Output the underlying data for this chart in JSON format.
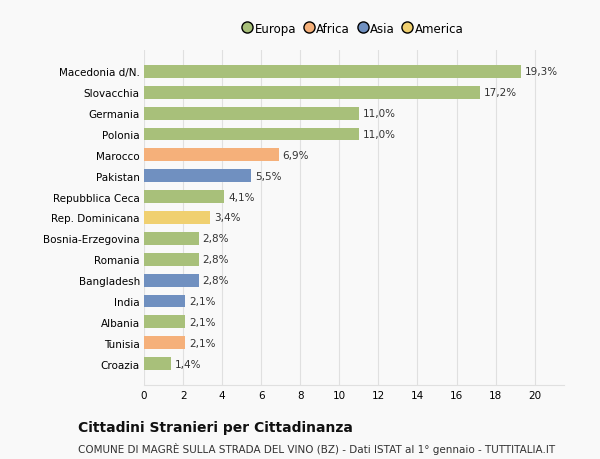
{
  "categories": [
    "Macedonia d/N.",
    "Slovacchia",
    "Germania",
    "Polonia",
    "Marocco",
    "Pakistan",
    "Repubblica Ceca",
    "Rep. Dominicana",
    "Bosnia-Erzegovina",
    "Romania",
    "Bangladesh",
    "India",
    "Albania",
    "Tunisia",
    "Croazia"
  ],
  "values": [
    19.3,
    17.2,
    11.0,
    11.0,
    6.9,
    5.5,
    4.1,
    3.4,
    2.8,
    2.8,
    2.8,
    2.1,
    2.1,
    2.1,
    1.4
  ],
  "labels": [
    "19,3%",
    "17,2%",
    "11,0%",
    "11,0%",
    "6,9%",
    "5,5%",
    "4,1%",
    "3,4%",
    "2,8%",
    "2,8%",
    "2,8%",
    "2,1%",
    "2,1%",
    "2,1%",
    "1,4%"
  ],
  "colors": [
    "#a8c07a",
    "#a8c07a",
    "#a8c07a",
    "#a8c07a",
    "#f5b07a",
    "#7090c0",
    "#a8c07a",
    "#f0d070",
    "#a8c07a",
    "#a8c07a",
    "#7090c0",
    "#7090c0",
    "#a8c07a",
    "#f5b07a",
    "#a8c07a"
  ],
  "legend_labels": [
    "Europa",
    "Africa",
    "Asia",
    "America"
  ],
  "legend_colors": [
    "#a8c07a",
    "#f5b07a",
    "#7090c0",
    "#f0d070"
  ],
  "title": "Cittadini Stranieri per Cittadinanza",
  "subtitle": "COMUNE DI MAGRÈ SULLA STRADA DEL VINO (BZ) - Dati ISTAT al 1° gennaio - TUTTITALIA.IT",
  "xlim_max": 20,
  "xticks": [
    0,
    2,
    4,
    6,
    8,
    10,
    12,
    14,
    16,
    18,
    20
  ],
  "background_color": "#f9f9f9",
  "grid_color": "#e0e0e0",
  "title_fontsize": 10,
  "subtitle_fontsize": 7.5,
  "label_fontsize": 7.5,
  "tick_fontsize": 7.5,
  "bar_height": 0.62
}
